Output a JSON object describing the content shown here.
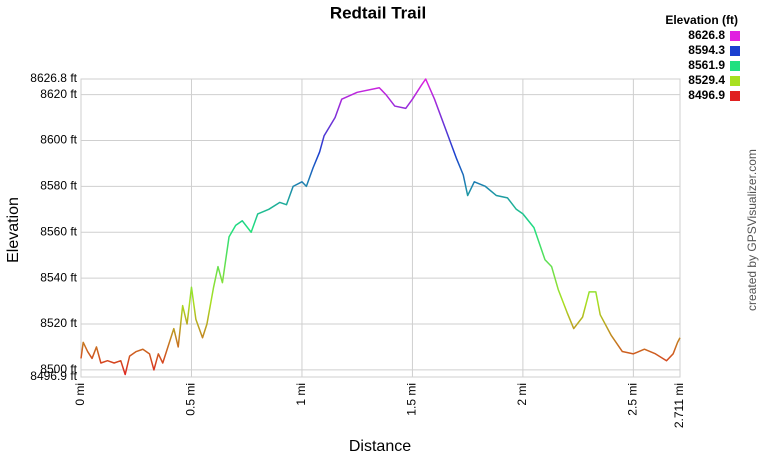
{
  "chart_data": {
    "type": "line",
    "title": "Redtail Trail",
    "x_label": "Distance",
    "y_label": "Elevation",
    "credit": "created by GPSVisualizer.com",
    "legend_title": "Elevation (ft)",
    "legend_position": "top-right",
    "grid": true,
    "color_scale": [
      {
        "value": 8626.8,
        "color": "#e020e0"
      },
      {
        "value": 8594.3,
        "color": "#1a3fd0"
      },
      {
        "value": 8561.9,
        "color": "#20e080"
      },
      {
        "value": 8529.4,
        "color": "#a8e020"
      },
      {
        "value": 8496.9,
        "color": "#e02020"
      }
    ],
    "xlim": [
      0,
      2.711
    ],
    "xticks": [
      {
        "value": 0,
        "label": "0 mi"
      },
      {
        "value": 0.5,
        "label": "0.5 mi"
      },
      {
        "value": 1,
        "label": "1 mi"
      },
      {
        "value": 1.5,
        "label": "1.5 mi"
      },
      {
        "value": 2,
        "label": "2 mi"
      },
      {
        "value": 2.5,
        "label": "2.5 mi"
      },
      {
        "value": 2.711,
        "label": "2.711 mi"
      }
    ],
    "ylim": [
      8496.9,
      8626.8
    ],
    "yticks": [
      {
        "value": 8496.9,
        "label": "8496.9 ft"
      },
      {
        "value": 8500,
        "label": "8500 ft"
      },
      {
        "value": 8520,
        "label": "8520 ft"
      },
      {
        "value": 8540,
        "label": "8540 ft"
      },
      {
        "value": 8560,
        "label": "8560 ft"
      },
      {
        "value": 8580,
        "label": "8580 ft"
      },
      {
        "value": 8600,
        "label": "8600 ft"
      },
      {
        "value": 8620,
        "label": "8620 ft"
      },
      {
        "value": 8626.8,
        "label": "8626.8 ft"
      }
    ],
    "x": [
      0,
      0.01,
      0.03,
      0.05,
      0.07,
      0.09,
      0.12,
      0.15,
      0.18,
      0.2,
      0.22,
      0.25,
      0.28,
      0.31,
      0.33,
      0.35,
      0.37,
      0.4,
      0.42,
      0.44,
      0.46,
      0.48,
      0.5,
      0.52,
      0.55,
      0.57,
      0.6,
      0.62,
      0.64,
      0.67,
      0.7,
      0.73,
      0.77,
      0.8,
      0.85,
      0.9,
      0.93,
      0.96,
      1.0,
      1.02,
      1.05,
      1.08,
      1.1,
      1.15,
      1.18,
      1.25,
      1.35,
      1.38,
      1.42,
      1.47,
      1.5,
      1.54,
      1.56,
      1.6,
      1.65,
      1.7,
      1.73,
      1.75,
      1.78,
      1.83,
      1.88,
      1.93,
      1.97,
      2.0,
      2.05,
      2.1,
      2.13,
      2.16,
      2.2,
      2.23,
      2.27,
      2.3,
      2.33,
      2.35,
      2.4,
      2.45,
      2.5,
      2.55,
      2.6,
      2.65,
      2.68,
      2.7,
      2.711
    ],
    "values": [
      8505,
      8512,
      8508,
      8505,
      8510,
      8503,
      8504,
      8503,
      8504,
      8498,
      8506,
      8508,
      8509,
      8507,
      8500,
      8507,
      8503,
      8512,
      8518,
      8510,
      8528,
      8520,
      8536,
      8522,
      8514,
      8520,
      8536,
      8545,
      8538,
      8558,
      8563,
      8565,
      8560,
      8568,
      8570,
      8573,
      8572,
      8580,
      8582,
      8580,
      8588,
      8595,
      8602,
      8610,
      8618,
      8621,
      8623,
      8620,
      8615,
      8614,
      8618,
      8624,
      8626.8,
      8618,
      8605,
      8592,
      8585,
      8576,
      8582,
      8580,
      8576,
      8575,
      8570,
      8568,
      8562,
      8548,
      8545,
      8535,
      8525,
      8518,
      8523,
      8534,
      8534,
      8524,
      8515,
      8508,
      8507,
      8509,
      8507,
      8504,
      8507,
      8512,
      8514
    ]
  }
}
